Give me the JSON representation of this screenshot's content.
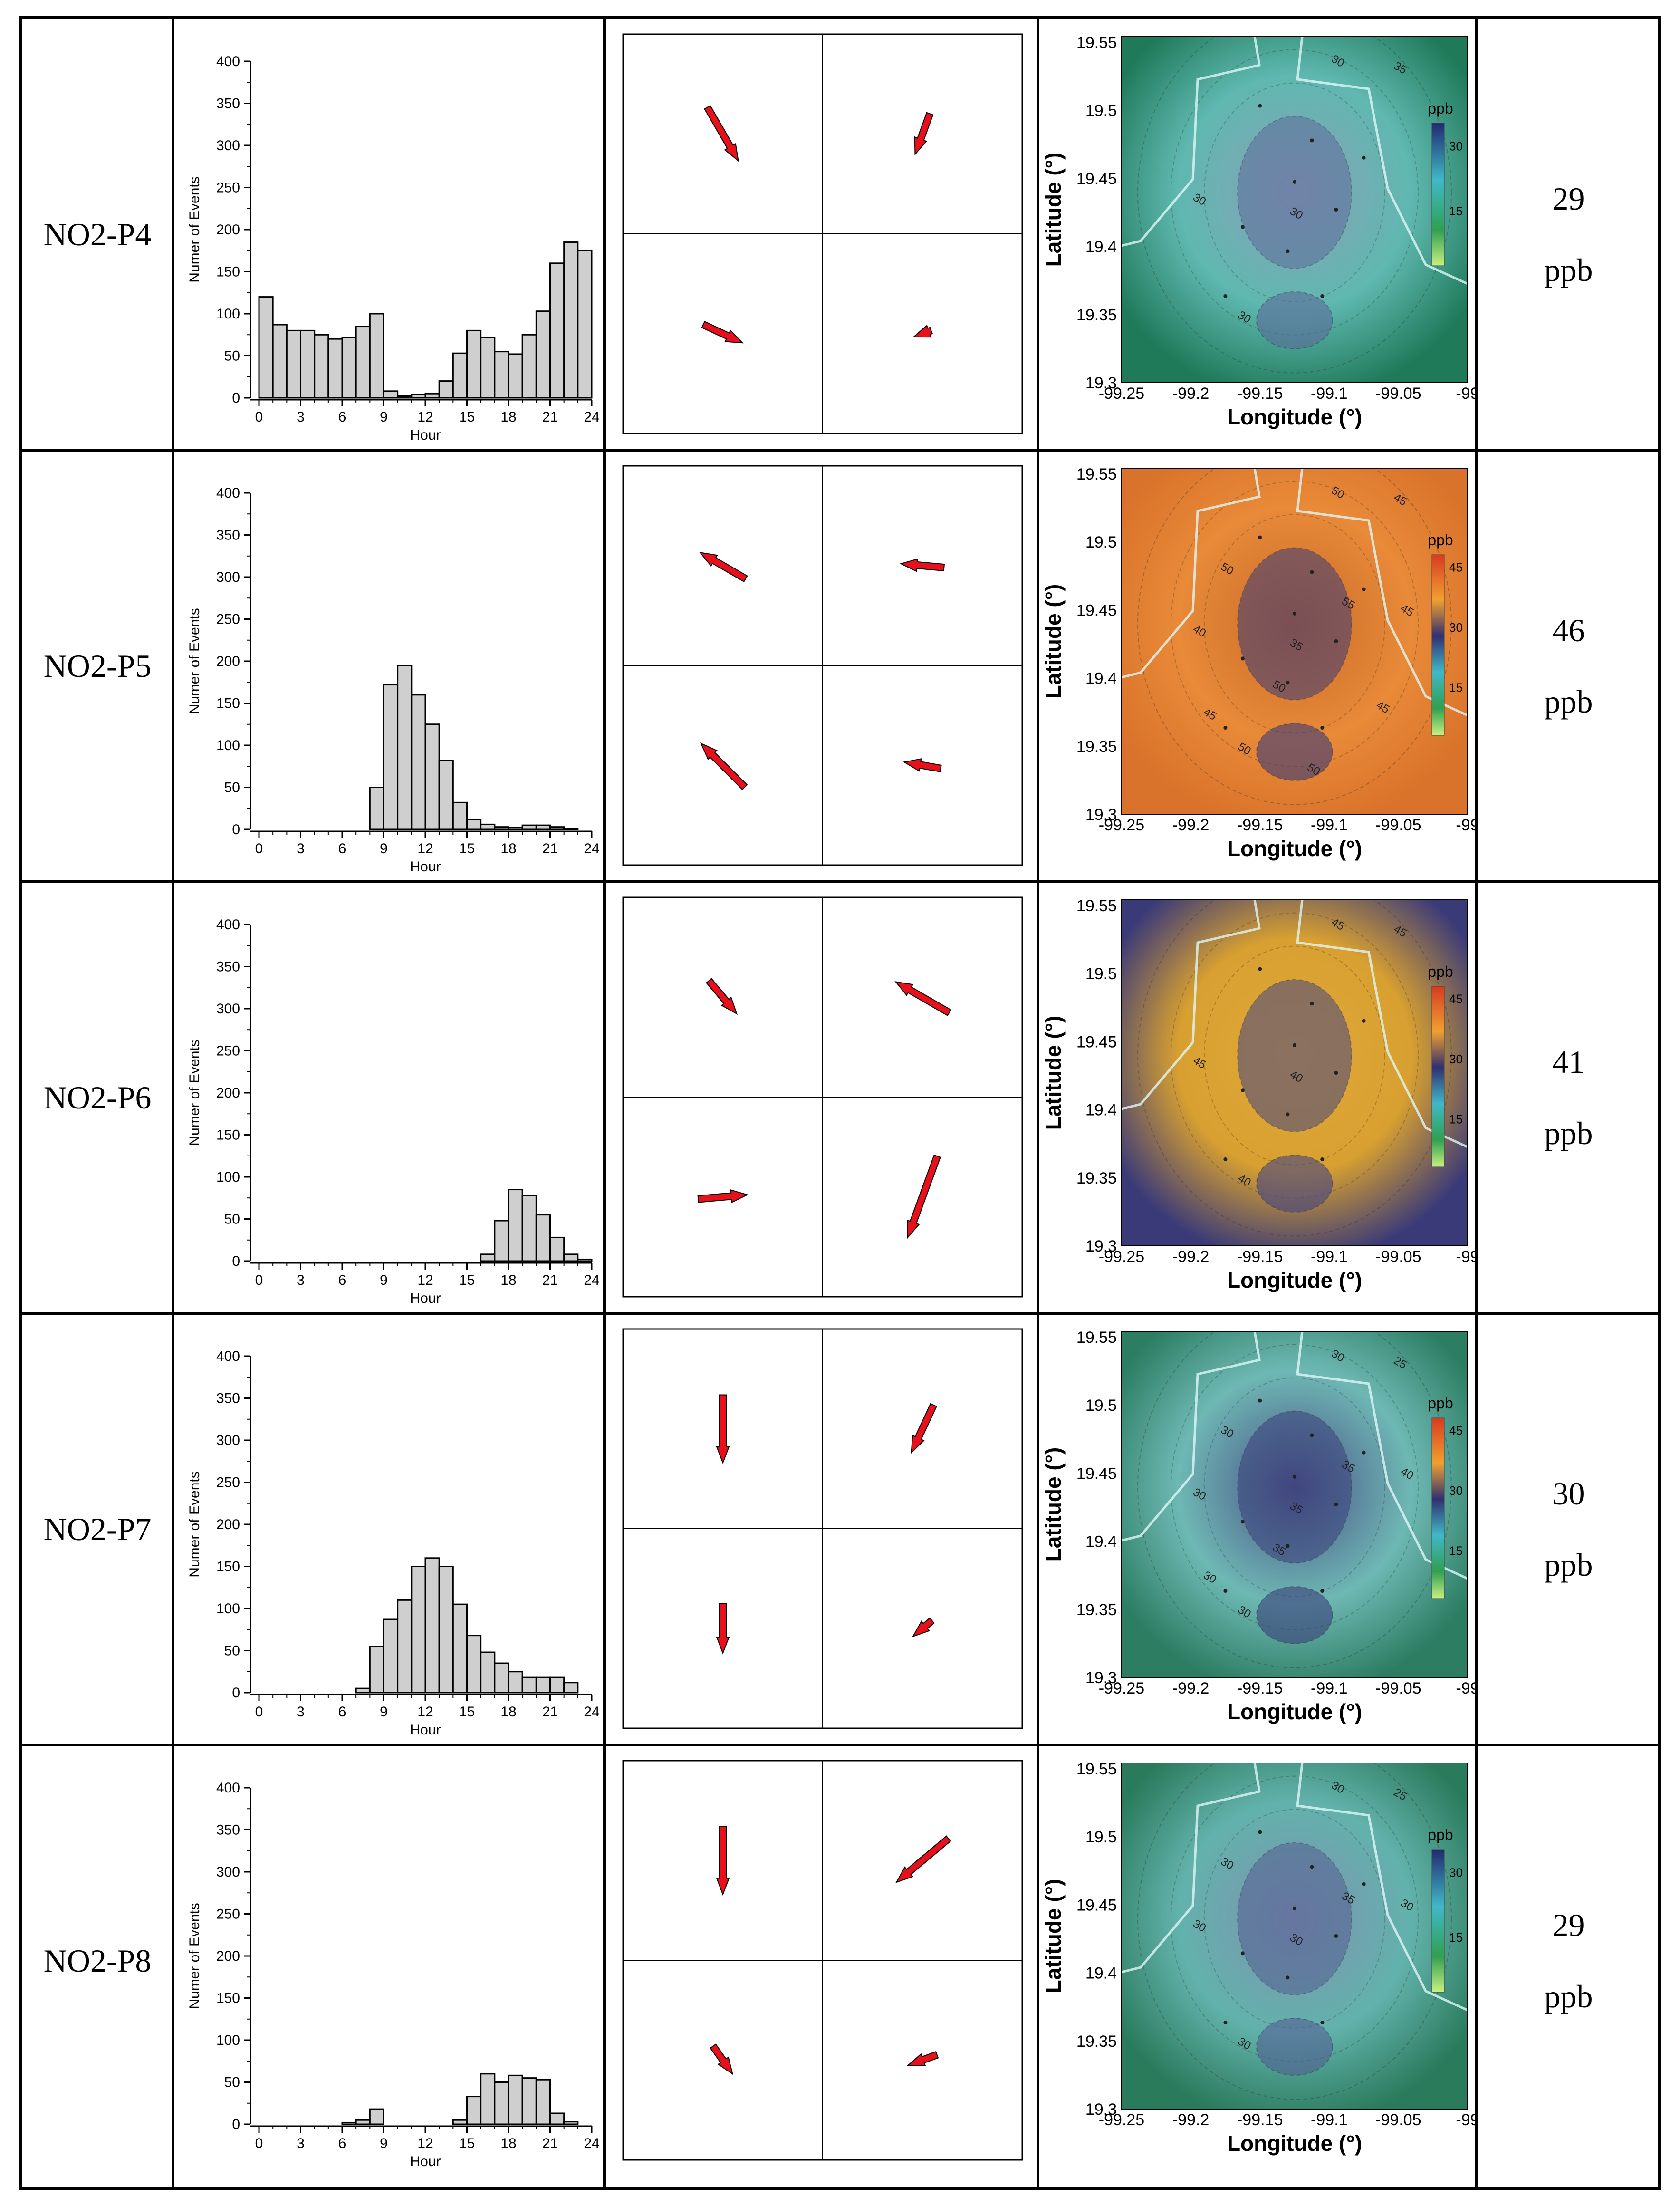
{
  "chart_data": [
    {
      "type": "bar",
      "label": "NO2-P4",
      "value": "29",
      "unit": "ppb",
      "ylabel": "Numer of Events",
      "xlabel": "Hour",
      "ylim": [
        0,
        400
      ],
      "yticks": [
        "0",
        "50",
        "100",
        "150",
        "200",
        "250",
        "300",
        "350",
        "400"
      ],
      "xticks": [
        "0",
        "3",
        "6",
        "9",
        "12",
        "15",
        "18",
        "21",
        "24"
      ],
      "hours": [
        0,
        1,
        2,
        3,
        4,
        5,
        6,
        7,
        8,
        9,
        10,
        11,
        12,
        13,
        14,
        15,
        16,
        17,
        18,
        19,
        20,
        21,
        22,
        23
      ],
      "values": [
        120,
        87,
        80,
        80,
        75,
        70,
        72,
        85,
        100,
        8,
        2,
        4,
        5,
        20,
        53,
        80,
        72,
        55,
        52,
        75,
        103,
        160,
        185,
        175
      ],
      "map": {
        "legend_label": "ppb",
        "legend_ticks": [
          "30",
          "15"
        ],
        "contour_labels": [
          "30",
          "35",
          "30",
          "30",
          "30"
        ],
        "ylabel": "Latitude (°)",
        "xlabel": "Longitude (°)",
        "yticks": [
          "19.55",
          "19.5",
          "19.45",
          "19.4",
          "19.35",
          "19.3"
        ],
        "xticks": [
          "-99.25",
          "-99.2",
          "-99.15",
          "-99.1",
          "-99.05",
          "-99"
        ],
        "colors": [
          "#1f7a5a",
          "#5fb8b0",
          "#8aa0b8",
          "#5c6b9a"
        ]
      },
      "wind": [
        {
          "angle": -60,
          "len": 1.0
        },
        {
          "angle": -110,
          "len": 0.7
        },
        {
          "angle": -25,
          "len": 0.7
        },
        {
          "angle": -160,
          "len": 0.3
        }
      ]
    },
    {
      "type": "bar",
      "label": "NO2-P5",
      "value": "46",
      "unit": "ppb",
      "ylabel": "Numer of Events",
      "xlabel": "Hour",
      "ylim": [
        0,
        400
      ],
      "yticks": [
        "0",
        "50",
        "100",
        "150",
        "200",
        "250",
        "300",
        "350",
        "400"
      ],
      "xticks": [
        "0",
        "3",
        "6",
        "9",
        "12",
        "15",
        "18",
        "21",
        "24"
      ],
      "hours": [
        0,
        1,
        2,
        3,
        4,
        5,
        6,
        7,
        8,
        9,
        10,
        11,
        12,
        13,
        14,
        15,
        16,
        17,
        18,
        19,
        20,
        21,
        22,
        23
      ],
      "values": [
        0,
        0,
        0,
        0,
        0,
        0,
        0,
        0,
        50,
        172,
        195,
        160,
        125,
        82,
        32,
        12,
        6,
        3,
        2,
        5,
        5,
        3,
        1,
        0
      ],
      "map": {
        "legend_label": "ppb",
        "legend_ticks": [
          "45",
          "30",
          "15"
        ],
        "contour_labels": [
          "50",
          "45",
          "40",
          "35",
          "50",
          "50",
          "55",
          "45",
          "50",
          "45",
          "45",
          "50"
        ],
        "ylabel": "Latitude (°)",
        "xlabel": "Longitude (°)",
        "yticks": [
          "19.55",
          "19.5",
          "19.45",
          "19.4",
          "19.35",
          "19.3"
        ],
        "xticks": [
          "-99.25",
          "-99.2",
          "-99.15",
          "-99.1",
          "-99.05",
          "-99"
        ],
        "colors": [
          "#d9722a",
          "#e88a38",
          "#c96a2a",
          "#3a3a78"
        ]
      },
      "wind": [
        {
          "angle": 150,
          "len": 0.85
        },
        {
          "angle": 175,
          "len": 0.7
        },
        {
          "angle": 135,
          "len": 1.0
        },
        {
          "angle": 170,
          "len": 0.6
        }
      ]
    },
    {
      "type": "bar",
      "label": "NO2-P6",
      "value": "41",
      "unit": "ppb",
      "ylabel": "Numer of Events",
      "xlabel": "Hour",
      "ylim": [
        0,
        400
      ],
      "yticks": [
        "0",
        "50",
        "100",
        "150",
        "200",
        "250",
        "300",
        "350",
        "400"
      ],
      "xticks": [
        "0",
        "3",
        "6",
        "9",
        "12",
        "15",
        "18",
        "21",
        "24"
      ],
      "hours": [
        0,
        1,
        2,
        3,
        4,
        5,
        6,
        7,
        8,
        9,
        10,
        11,
        12,
        13,
        14,
        15,
        16,
        17,
        18,
        19,
        20,
        21,
        22,
        23
      ],
      "values": [
        0,
        0,
        0,
        0,
        0,
        0,
        0,
        0,
        0,
        0,
        0,
        0,
        0,
        0,
        0,
        0,
        8,
        48,
        85,
        78,
        55,
        28,
        8,
        2
      ],
      "map": {
        "legend_label": "ppb",
        "legend_ticks": [
          "45",
          "30",
          "15"
        ],
        "contour_labels": [
          "45",
          "45",
          "45",
          "40",
          "40"
        ],
        "ylabel": "Latitude (°)",
        "xlabel": "Longitude (°)",
        "yticks": [
          "19.55",
          "19.5",
          "19.45",
          "19.4",
          "19.35",
          "19.3"
        ],
        "xticks": [
          "-99.25",
          "-99.2",
          "-99.15",
          "-99.1",
          "-99.05",
          "-99"
        ],
        "colors": [
          "#3a3a78",
          "#d8a030",
          "#e0a838",
          "#454582"
        ]
      },
      "wind": [
        {
          "angle": -50,
          "len": 0.7
        },
        {
          "angle": 150,
          "len": 1.0
        },
        {
          "angle": 5,
          "len": 0.8
        },
        {
          "angle": -110,
          "len": 1.4
        }
      ]
    },
    {
      "type": "bar",
      "label": "NO2-P7",
      "value": "30",
      "unit": "ppb",
      "ylabel": "Numer of Events",
      "xlabel": "Hour",
      "ylim": [
        0,
        400
      ],
      "yticks": [
        "0",
        "50",
        "100",
        "150",
        "200",
        "250",
        "300",
        "350",
        "400"
      ],
      "xticks": [
        "0",
        "3",
        "6",
        "9",
        "12",
        "15",
        "18",
        "21",
        "24"
      ],
      "hours": [
        0,
        1,
        2,
        3,
        4,
        5,
        6,
        7,
        8,
        9,
        10,
        11,
        12,
        13,
        14,
        15,
        16,
        17,
        18,
        19,
        20,
        21,
        22,
        23
      ],
      "values": [
        0,
        0,
        0,
        0,
        0,
        0,
        0,
        5,
        55,
        87,
        110,
        150,
        160,
        150,
        105,
        68,
        48,
        35,
        25,
        18,
        18,
        18,
        12,
        0
      ],
      "map": {
        "legend_label": "ppb",
        "legend_ticks": [
          "45",
          "30",
          "15"
        ],
        "contour_labels": [
          "30",
          "25",
          "30",
          "35",
          "30",
          "30",
          "35",
          "40",
          "35",
          "30"
        ],
        "ylabel": "Latitude (°)",
        "xlabel": "Longitude (°)",
        "yticks": [
          "19.55",
          "19.5",
          "19.45",
          "19.4",
          "19.35",
          "19.3"
        ],
        "xticks": [
          "-99.25",
          "-99.2",
          "-99.15",
          "-99.1",
          "-99.05",
          "-99"
        ],
        "colors": [
          "#2c7d62",
          "#6eb8b4",
          "#4a4f86",
          "#3a3f7a"
        ]
      },
      "wind": [
        {
          "angle": -90,
          "len": 1.1
        },
        {
          "angle": -115,
          "len": 0.85
        },
        {
          "angle": -90,
          "len": 0.8
        },
        {
          "angle": -140,
          "len": 0.4
        }
      ]
    },
    {
      "type": "bar",
      "label": "NO2-P8",
      "value": "29",
      "unit": "ppb",
      "ylabel": "Numer of Events",
      "xlabel": "Hour",
      "ylim": [
        0,
        400
      ],
      "yticks": [
        "0",
        "50",
        "100",
        "150",
        "200",
        "250",
        "300",
        "350",
        "400"
      ],
      "xticks": [
        "0",
        "3",
        "6",
        "9",
        "12",
        "15",
        "18",
        "21",
        "24"
      ],
      "hours": [
        0,
        1,
        2,
        3,
        4,
        5,
        6,
        7,
        8,
        9,
        10,
        11,
        12,
        13,
        14,
        15,
        16,
        17,
        18,
        19,
        20,
        21,
        22,
        23
      ],
      "values": [
        0,
        0,
        0,
        0,
        0,
        0,
        2,
        5,
        18,
        0,
        0,
        0,
        0,
        0,
        5,
        33,
        60,
        50,
        58,
        55,
        53,
        13,
        3,
        0
      ],
      "map": {
        "legend_label": "ppb",
        "legend_ticks": [
          "30",
          "15"
        ],
        "contour_labels": [
          "30",
          "25",
          "30",
          "30",
          "30",
          "30",
          "35",
          "30"
        ],
        "ylabel": "Latitude (°)",
        "xlabel": "Longitude (°)",
        "yticks": [
          "19.55",
          "19.5",
          "19.45",
          "19.4",
          "19.35",
          "19.3"
        ],
        "xticks": [
          "-99.25",
          "-99.2",
          "-99.15",
          "-99.1",
          "-99.05",
          "-99"
        ],
        "colors": [
          "#2a7a5c",
          "#62b2ac",
          "#7f92b0",
          "#545f92"
        ]
      },
      "wind": [
        {
          "angle": -90,
          "len": 1.1
        },
        {
          "angle": -140,
          "len": 1.1
        },
        {
          "angle": -55,
          "len": 0.55
        },
        {
          "angle": -160,
          "len": 0.5
        }
      ]
    }
  ]
}
